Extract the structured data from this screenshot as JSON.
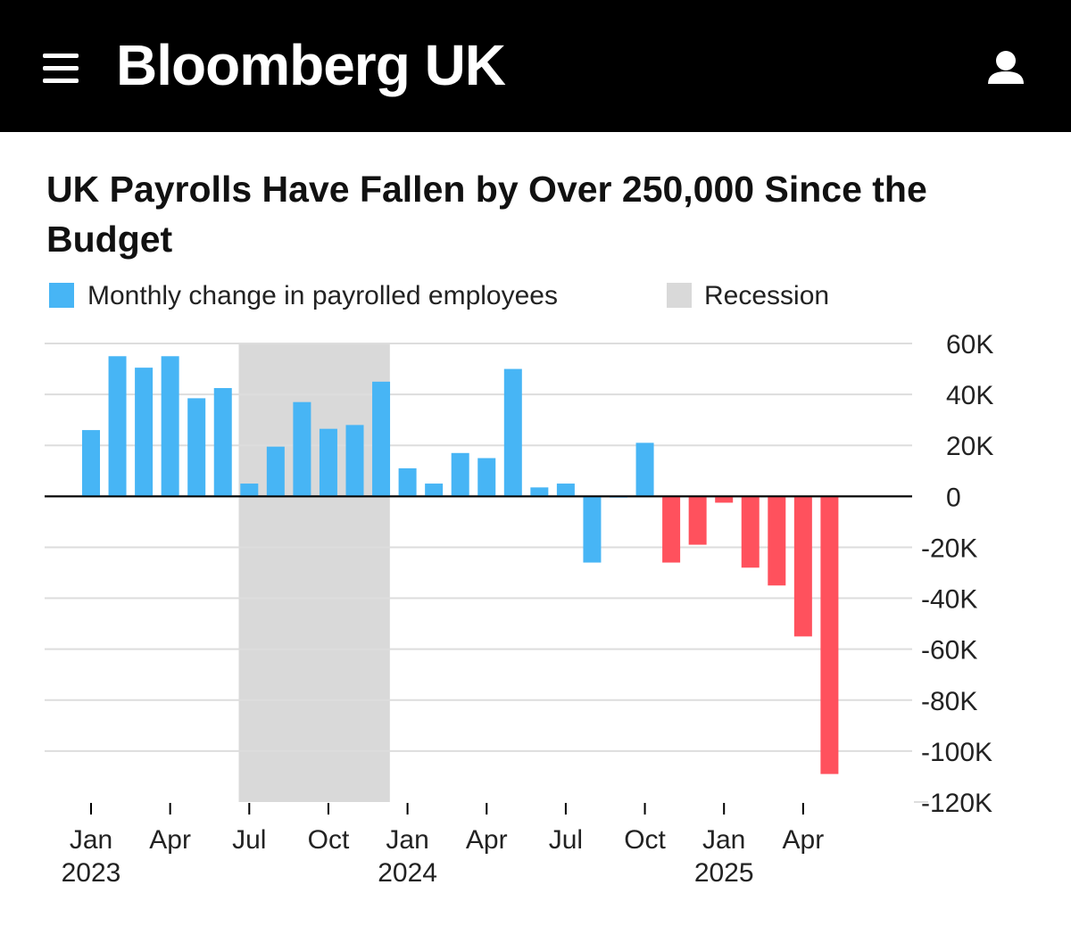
{
  "header": {
    "brand": "Bloomberg UK"
  },
  "chart_data": {
    "type": "bar",
    "title": "UK Payrolls Have Fallen by Over 250,000 Since the Budget",
    "x": [
      "2023-01",
      "2023-02",
      "2023-03",
      "2023-04",
      "2023-05",
      "2023-06",
      "2023-07",
      "2023-08",
      "2023-09",
      "2023-10",
      "2023-11",
      "2023-12",
      "2024-01",
      "2024-02",
      "2024-03",
      "2024-04",
      "2024-05",
      "2024-06",
      "2024-07",
      "2024-08",
      "2024-09",
      "2024-10",
      "2024-11",
      "2024-12",
      "2025-01",
      "2025-02",
      "2025-03",
      "2025-04",
      "2025-05"
    ],
    "series": [
      {
        "name": "Monthly change in payrolled employees",
        "color": "#47b5f5",
        "bar_colors": [
          "#47b5f5",
          "#47b5f5",
          "#47b5f5",
          "#47b5f5",
          "#47b5f5",
          "#47b5f5",
          "#47b5f5",
          "#47b5f5",
          "#47b5f5",
          "#47b5f5",
          "#47b5f5",
          "#47b5f5",
          "#47b5f5",
          "#47b5f5",
          "#47b5f5",
          "#47b5f5",
          "#47b5f5",
          "#47b5f5",
          "#47b5f5",
          "#47b5f5",
          "#47b5f5",
          "#47b5f5",
          "#ff515d",
          "#ff515d",
          "#ff515d",
          "#ff515d",
          "#ff515d",
          "#ff515d",
          "#ff515d"
        ],
        "values": [
          26000,
          55000,
          50500,
          55000,
          38500,
          42500,
          5000,
          19500,
          37000,
          26500,
          28000,
          45000,
          11000,
          5000,
          17000,
          15000,
          50000,
          3500,
          5000,
          -26000,
          -500,
          21000,
          -26000,
          -19000,
          -2500,
          -28000,
          -35000,
          -55000,
          -109000
        ]
      }
    ],
    "recession": {
      "name": "Recession",
      "color": "#d9d9d9",
      "from": "2023-07",
      "to": "2023-12"
    },
    "ylim": [
      -120000,
      60000
    ],
    "yticks": [
      {
        "value": 60000,
        "label": "60K"
      },
      {
        "value": 40000,
        "label": "40K"
      },
      {
        "value": 20000,
        "label": "20K"
      },
      0,
      {
        "value": -20000,
        "label": "-20K"
      },
      {
        "value": -40000,
        "label": "-40K"
      },
      {
        "value": -60000,
        "label": "-60K"
      },
      {
        "value": -80000,
        "label": "-80K"
      },
      {
        "value": -100000,
        "label": "-100K"
      },
      {
        "value": -120000,
        "label": "-120K"
      }
    ],
    "xticks": [
      {
        "value": "2023-01",
        "label": "Jan",
        "year": "2023"
      },
      {
        "value": "2023-04",
        "label": "Apr"
      },
      {
        "value": "2023-07",
        "label": "Jul"
      },
      {
        "value": "2023-10",
        "label": "Oct"
      },
      {
        "value": "2024-01",
        "label": "Jan",
        "year": "2024"
      },
      {
        "value": "2024-04",
        "label": "Apr"
      },
      {
        "value": "2024-07",
        "label": "Jul"
      },
      {
        "value": "2024-10",
        "label": "Oct"
      },
      {
        "value": "2025-01",
        "label": "Jan",
        "year": "2025"
      },
      {
        "value": "2025-04",
        "label": "Apr"
      }
    ],
    "grid": true
  }
}
